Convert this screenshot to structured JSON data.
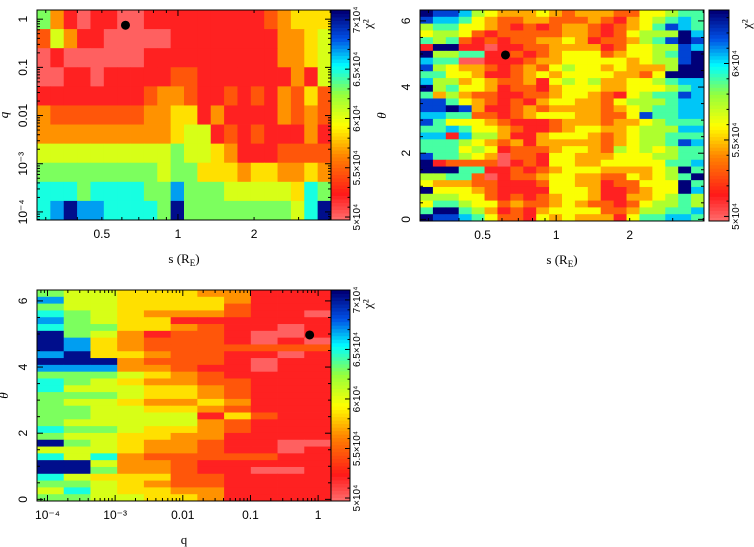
{
  "chart_data": [
    {
      "id": "p1",
      "type": "heatmap",
      "xlabel": {
        "text": "s (R",
        "sub": "E",
        "end": ")"
      },
      "ylabel": "q",
      "xscale": "log",
      "yscale": "log",
      "xlim": [
        0.277,
        4.03
      ],
      "ylim": [
        6.8e-05,
        1.55
      ],
      "xticks": [
        {
          "v": 0.5,
          "label": "0.5"
        },
        {
          "v": 1,
          "label": "1"
        },
        {
          "v": 2,
          "label": "2"
        }
      ],
      "yticks": [
        {
          "v": 0.0001,
          "label": "10⁻⁴"
        },
        {
          "v": 0.001,
          "label": "10⁻³"
        },
        {
          "v": 0.01,
          "label": "0.01"
        },
        {
          "v": 0.1,
          "label": "0.1"
        },
        {
          "v": 1,
          "label": "1"
        }
      ],
      "colorbar": {
        "title": "χ²",
        "range_1e4": [
          4.97,
          7.1
        ],
        "ticks": [
          {
            "v": 5,
            "label": "5×10⁴"
          },
          {
            "v": 5.5,
            "label": "5.5×10⁴"
          },
          {
            "v": 6,
            "label": "6×10⁴"
          },
          {
            "v": 6.5,
            "label": "6.5×10⁴"
          },
          {
            "v": 7,
            "label": "7×10⁴"
          }
        ]
      },
      "level_to_chi2_1e4": [
        5.0,
        5.2,
        5.45,
        5.65,
        5.85,
        6.05,
        6.3,
        6.5,
        6.7,
        7.05
      ],
      "rows_top_to_bottom": [
        "6310110011111111123444",
        "2531100000111111113345",
        "0100000011111111113345",
        "0011011111221111111315",
        "1111111123321121213242",
        "3222222233441311113232",
        "3333333333455121211131",
        "5555555555655431112222",
        "6666666665664443443343",
        "7776777766866655555476",
        "7898877776966666666579"
      ],
      "best_fit": {
        "x": 0.62,
        "y": 0.75
      }
    },
    {
      "id": "p2",
      "type": "heatmap",
      "xlabel": {
        "text": "s (R",
        "sub": "E",
        "end": ")"
      },
      "ylabel": "θ",
      "xscale": "log",
      "yscale": "linear",
      "xlim": [
        0.277,
        4.03
      ],
      "ylim": [
        -0.05,
        6.33
      ],
      "xticks": [
        {
          "v": 0.5,
          "label": "0.5"
        },
        {
          "v": 1,
          "label": "1"
        },
        {
          "v": 2,
          "label": "2"
        }
      ],
      "yticks": [
        {
          "v": 0,
          "label": "0"
        },
        {
          "v": 2,
          "label": "2"
        },
        {
          "v": 4,
          "label": "4"
        },
        {
          "v": 6,
          "label": "6"
        }
      ],
      "colorbar": {
        "title": "χ²",
        "range_1e4": [
          4.97,
          6.35
        ],
        "ticks": [
          {
            "v": 5,
            "label": "5×10⁴"
          },
          {
            "v": 5.5,
            "label": "5.5×10⁴"
          },
          {
            "v": 6,
            "label": "6×10⁴"
          }
        ]
      },
      "level_to_chi2_1e4": [
        5.0,
        5.12,
        5.3,
        5.45,
        5.6,
        5.75,
        5.9,
        6.05,
        6.2,
        6.35
      ],
      "rows_top_to_bottom": [
        "9887543334323332244566",
        "8776432233222321345676",
        "5664432121233212346876",
        "4554212222233212455597",
        "6562121223343122356898",
        "1991101122333312445587",
        "9556611212344423445689",
        "7660011123344444345589",
        "8543321232454434333599",
        "6644311234344443324999",
        "7553432231454533445677",
        "9564431221344433444567",
        "6353221122344321456687",
        "8864321213443324555677",
        "8898311232333323456677",
        "7766221234443322486677",
        "8644432111233323345666",
        "6676443211234433455577",
        "7717553113444323455666",
        "6665432313333323455687",
        "6664541222344325454566",
        "8665430221443334445566",
        "9122220121443344444667",
        "9996611212344433334596",
        "5566201223443322434569",
        "4333221112443312244496",
        "9444321111444311234497",
        "5554421212344311334565",
        "4665442322343221245565",
        "6996531213444422355667",
        "9887642214343331466776"
      ],
      "best_fit": {
        "x": 0.62,
        "y": 4.97
      }
    },
    {
      "id": "p3",
      "type": "heatmap",
      "xlabel": {
        "text": "q",
        "sub": "",
        "end": ""
      },
      "ylabel": "θ",
      "xscale": "log",
      "yscale": "linear",
      "xlim": [
        7e-05,
        1.55
      ],
      "ylim": [
        -0.05,
        6.33
      ],
      "xticks": [
        {
          "v": 0.0001,
          "label": "10⁻⁴"
        },
        {
          "v": 0.001,
          "label": "10⁻³"
        },
        {
          "v": 0.01,
          "label": "0.01"
        },
        {
          "v": 0.1,
          "label": "0.1"
        },
        {
          "v": 1,
          "label": "1"
        }
      ],
      "yticks": [
        {
          "v": 0,
          "label": "0"
        },
        {
          "v": 2,
          "label": "2"
        },
        {
          "v": 4,
          "label": "4"
        },
        {
          "v": 6,
          "label": "6"
        }
      ],
      "colorbar": {
        "title": "χ²",
        "range_1e4": [
          4.97,
          7.1
        ],
        "ticks": [
          {
            "v": 5,
            "label": "5×10⁴"
          },
          {
            "v": 5.5,
            "label": "5.5×10⁴"
          },
          {
            "v": 6,
            "label": "6×10⁴"
          },
          {
            "v": 6.5,
            "label": "6.5×10⁴"
          },
          {
            "v": 7,
            "label": "7×10⁴"
          }
        ]
      },
      "level_to_chi2_1e4": [
        5.0,
        5.2,
        5.45,
        5.65,
        5.85,
        6.05,
        6.3,
        6.5,
        6.7,
        7.05
      ],
      "rows_top_to_bottom": [
        "65544433111",
        "85544443111",
        "65544442111",
        "76543332110",
        "86544111111",
        "76644321101",
        "96531221001",
        "98432221010",
        "98432222222",
        "89443221101",
        "99932221011",
        "88833211011",
        "66654321111",
        "76543322111",
        "75554432111",
        "66654432111",
        "65543343111",
        "66554432111",
        "66555514211",
        "65555532111",
        "76654432111",
        "65544331111",
        "96543321100",
        "55543321101",
        "75732222211",
        "99533211111",
        "99633211001",
        "75444221111",
        "66543221111",
        "57544331111",
        "66554431111"
      ],
      "best_fit": {
        "x": 0.75,
        "y": 4.97
      }
    }
  ]
}
